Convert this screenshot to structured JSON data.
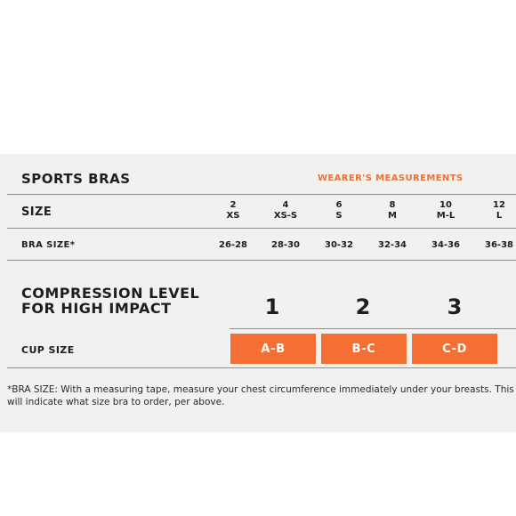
{
  "table": {
    "title": "SPORTS BRAS",
    "measurements_label": "WEARER'S MEASUREMENTS",
    "size_label": "SIZE",
    "sizes": [
      {
        "number": "2",
        "letter": "XS"
      },
      {
        "number": "4",
        "letter": "XS-S"
      },
      {
        "number": "6",
        "letter": "S"
      },
      {
        "number": "8",
        "letter": "M"
      },
      {
        "number": "10",
        "letter": "M-L"
      },
      {
        "number": "12",
        "letter": "L"
      }
    ],
    "bra_size_label": "BRA SIZE*",
    "bra_sizes": [
      "26-28",
      "28-30",
      "30-32",
      "32-34",
      "34-36",
      "36-38"
    ],
    "compression_label_line1": "COMPRESSION LEVEL",
    "compression_label_line2": "FOR HIGH IMPACT",
    "compression_levels": [
      "1",
      "2",
      "3"
    ],
    "cup_size_label": "CUP SIZE",
    "cup_sizes": [
      "A-B",
      "B-C",
      "C-D"
    ],
    "accent_color": "#f36f34",
    "footnote_line1": "*BRA SIZE: With a measuring tape, measure your chest circumference immediately under your breasts. This",
    "footnote_line2": "will indicate what size bra to order, per above."
  }
}
